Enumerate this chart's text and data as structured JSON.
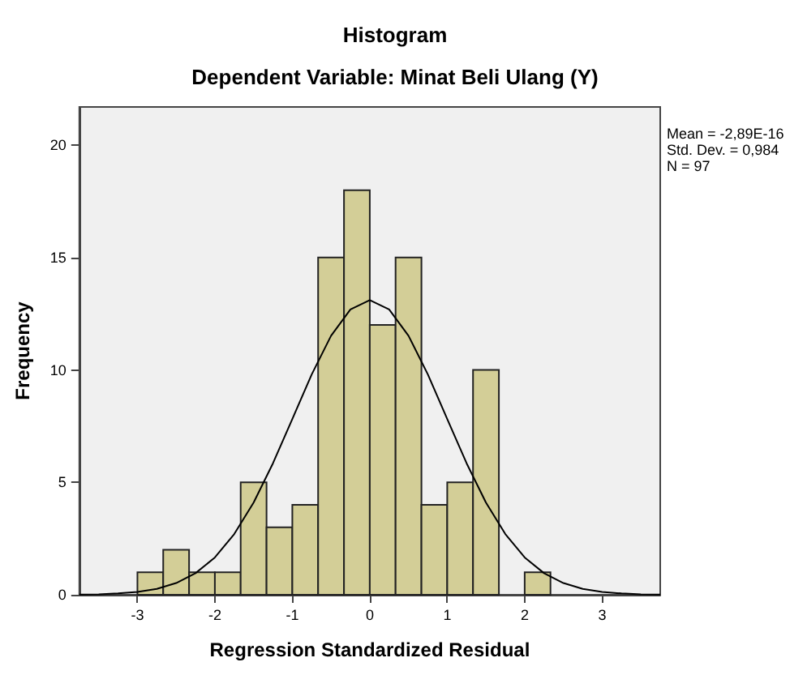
{
  "chart_data": {
    "type": "histogram",
    "title": "Histogram",
    "subtitle": "Dependent Variable: Minat Beli Ulang (Y)",
    "xlabel": "Regression Standardized Residual",
    "ylabel": "Frequency",
    "annotations": [
      "Mean = -2,89E-16",
      "Std. Dev. = 0,984",
      "N = 97"
    ],
    "bins": [
      -3,
      -2.667,
      -2.333,
      -2,
      -1.667,
      -1.333,
      -1,
      -0.667,
      -0.333,
      0,
      0.333,
      0.667,
      1,
      1.333,
      1.667,
      2,
      2.333
    ],
    "values": [
      1,
      2,
      1,
      1,
      5,
      3,
      4,
      15,
      18,
      12,
      15,
      4,
      5,
      10,
      0,
      1
    ],
    "color": "#d3ce97",
    "series": [
      {
        "type": "line",
        "color": "#000000",
        "x": [
          -3.75,
          -3.5,
          -3.25,
          -3,
          -2.75,
          -2.5,
          -2.25,
          -2,
          -1.75,
          -1.5,
          -1.25,
          -1,
          -0.75,
          -0.5,
          -0.25,
          0,
          0.25,
          0.5,
          0.75,
          1,
          1.25,
          1.5,
          1.75,
          2,
          2.25,
          2.5,
          2.75,
          3,
          3.25,
          3.5,
          3.75
        ],
        "values": [
          0.01,
          0.02,
          0.06,
          0.13,
          0.26,
          0.52,
          0.96,
          1.66,
          2.7,
          4.1,
          5.85,
          7.82,
          9.8,
          11.52,
          12.69,
          13.11,
          12.69,
          11.52,
          9.8,
          7.82,
          5.85,
          4.1,
          2.7,
          1.66,
          0.96,
          0.52,
          0.26,
          0.13,
          0.06,
          0.02,
          0.01
        ]
      }
    ],
    "xlim": [
      -3.75,
      3.75
    ],
    "xticks": [
      -3,
      -2,
      -1,
      0,
      1,
      2,
      3
    ],
    "ylim": [
      0,
      21.7
    ],
    "yticks": [
      0,
      5,
      10,
      15,
      20
    ],
    "grid": false,
    "marker": "none",
    "line_style": "solid"
  }
}
